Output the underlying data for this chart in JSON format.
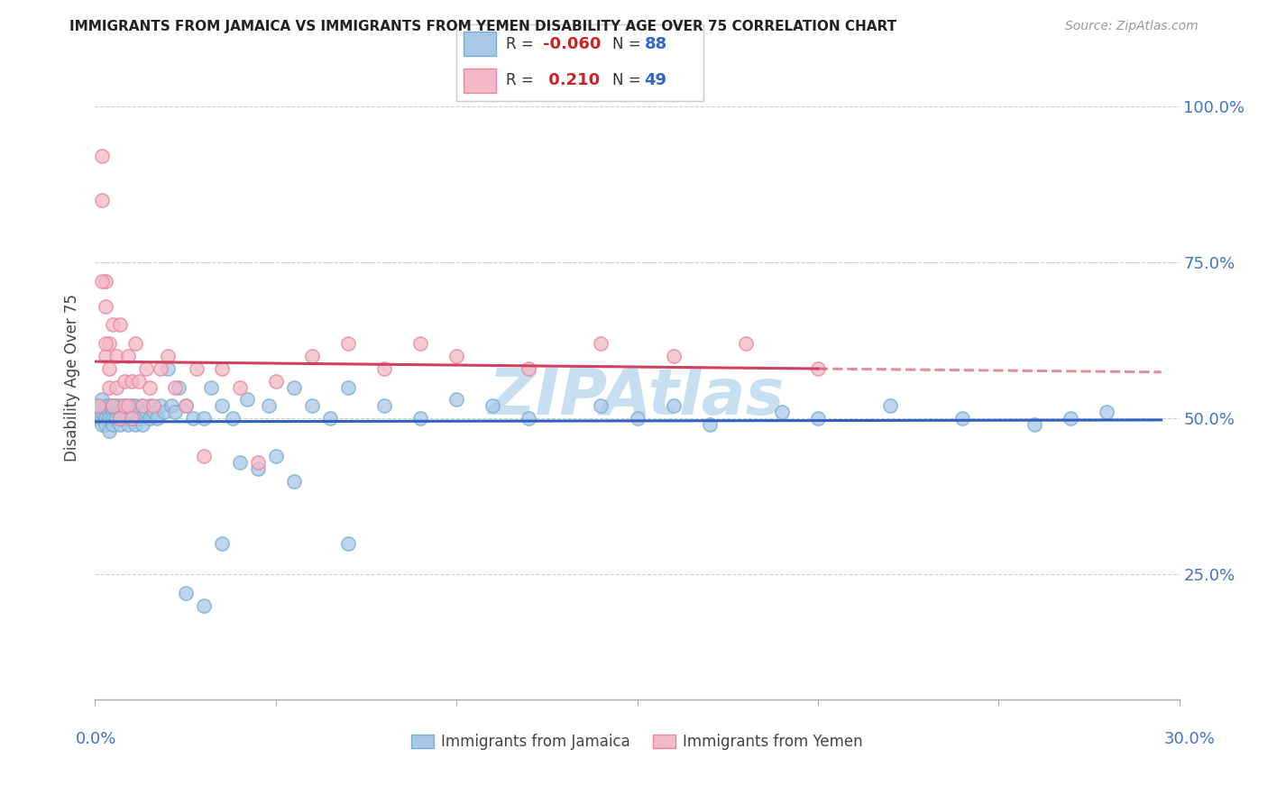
{
  "title": "IMMIGRANTS FROM JAMAICA VS IMMIGRANTS FROM YEMEN DISABILITY AGE OVER 75 CORRELATION CHART",
  "source": "Source: ZipAtlas.com",
  "ylabel": "Disability Age Over 75",
  "xlim": [
    0.0,
    0.3
  ],
  "ylim": [
    0.05,
    1.05
  ],
  "jamaica_color": "#a8c8e8",
  "jamaica_edge_color": "#7aaed0",
  "yemen_color": "#f4b8c8",
  "yemen_edge_color": "#e888a0",
  "jamaica_trend_color": "#3060c0",
  "yemen_trend_color": "#d04060",
  "watermark_color": "#c8dff0",
  "legend_R1": "-0.060",
  "legend_N1": "88",
  "legend_R2": "0.210",
  "legend_N2": "49",
  "jamaica_x": [
    0.001,
    0.001,
    0.001,
    0.002,
    0.002,
    0.002,
    0.002,
    0.003,
    0.003,
    0.003,
    0.003,
    0.004,
    0.004,
    0.004,
    0.004,
    0.005,
    0.005,
    0.005,
    0.005,
    0.006,
    0.006,
    0.006,
    0.007,
    0.007,
    0.007,
    0.007,
    0.008,
    0.008,
    0.008,
    0.009,
    0.009,
    0.009,
    0.01,
    0.01,
    0.01,
    0.011,
    0.011,
    0.012,
    0.012,
    0.013,
    0.013,
    0.014,
    0.015,
    0.015,
    0.016,
    0.017,
    0.018,
    0.019,
    0.02,
    0.021,
    0.022,
    0.023,
    0.025,
    0.027,
    0.03,
    0.032,
    0.035,
    0.038,
    0.042,
    0.048,
    0.055,
    0.06,
    0.065,
    0.07,
    0.08,
    0.09,
    0.1,
    0.11,
    0.12,
    0.14,
    0.15,
    0.16,
    0.17,
    0.19,
    0.2,
    0.22,
    0.24,
    0.26,
    0.27,
    0.28,
    0.04,
    0.05,
    0.03,
    0.025,
    0.035,
    0.045,
    0.055,
    0.07
  ],
  "jamaica_y": [
    0.51,
    0.5,
    0.52,
    0.5,
    0.51,
    0.49,
    0.53,
    0.51,
    0.5,
    0.52,
    0.49,
    0.51,
    0.5,
    0.52,
    0.48,
    0.51,
    0.5,
    0.52,
    0.49,
    0.51,
    0.5,
    0.52,
    0.51,
    0.5,
    0.52,
    0.49,
    0.51,
    0.5,
    0.52,
    0.51,
    0.5,
    0.49,
    0.52,
    0.51,
    0.5,
    0.52,
    0.49,
    0.51,
    0.5,
    0.52,
    0.49,
    0.51,
    0.52,
    0.5,
    0.51,
    0.5,
    0.52,
    0.51,
    0.58,
    0.52,
    0.51,
    0.55,
    0.52,
    0.5,
    0.5,
    0.55,
    0.52,
    0.5,
    0.53,
    0.52,
    0.55,
    0.52,
    0.5,
    0.55,
    0.52,
    0.5,
    0.53,
    0.52,
    0.5,
    0.52,
    0.5,
    0.52,
    0.49,
    0.51,
    0.5,
    0.52,
    0.5,
    0.49,
    0.5,
    0.51,
    0.43,
    0.44,
    0.2,
    0.22,
    0.3,
    0.42,
    0.4,
    0.3
  ],
  "yemen_x": [
    0.001,
    0.002,
    0.002,
    0.003,
    0.003,
    0.004,
    0.004,
    0.005,
    0.005,
    0.006,
    0.006,
    0.007,
    0.007,
    0.008,
    0.008,
    0.009,
    0.009,
    0.01,
    0.01,
    0.011,
    0.012,
    0.013,
    0.014,
    0.015,
    0.016,
    0.018,
    0.02,
    0.022,
    0.025,
    0.028,
    0.03,
    0.035,
    0.04,
    0.045,
    0.05,
    0.06,
    0.07,
    0.08,
    0.09,
    0.1,
    0.12,
    0.14,
    0.16,
    0.18,
    0.2,
    0.002,
    0.003,
    0.003,
    0.004
  ],
  "yemen_y": [
    0.52,
    0.85,
    0.92,
    0.6,
    0.72,
    0.55,
    0.62,
    0.52,
    0.65,
    0.55,
    0.6,
    0.65,
    0.5,
    0.56,
    0.52,
    0.6,
    0.52,
    0.56,
    0.5,
    0.62,
    0.56,
    0.52,
    0.58,
    0.55,
    0.52,
    0.58,
    0.6,
    0.55,
    0.52,
    0.58,
    0.44,
    0.58,
    0.55,
    0.43,
    0.56,
    0.6,
    0.62,
    0.58,
    0.62,
    0.6,
    0.58,
    0.62,
    0.6,
    0.62,
    0.58,
    0.72,
    0.68,
    0.62,
    0.58
  ]
}
